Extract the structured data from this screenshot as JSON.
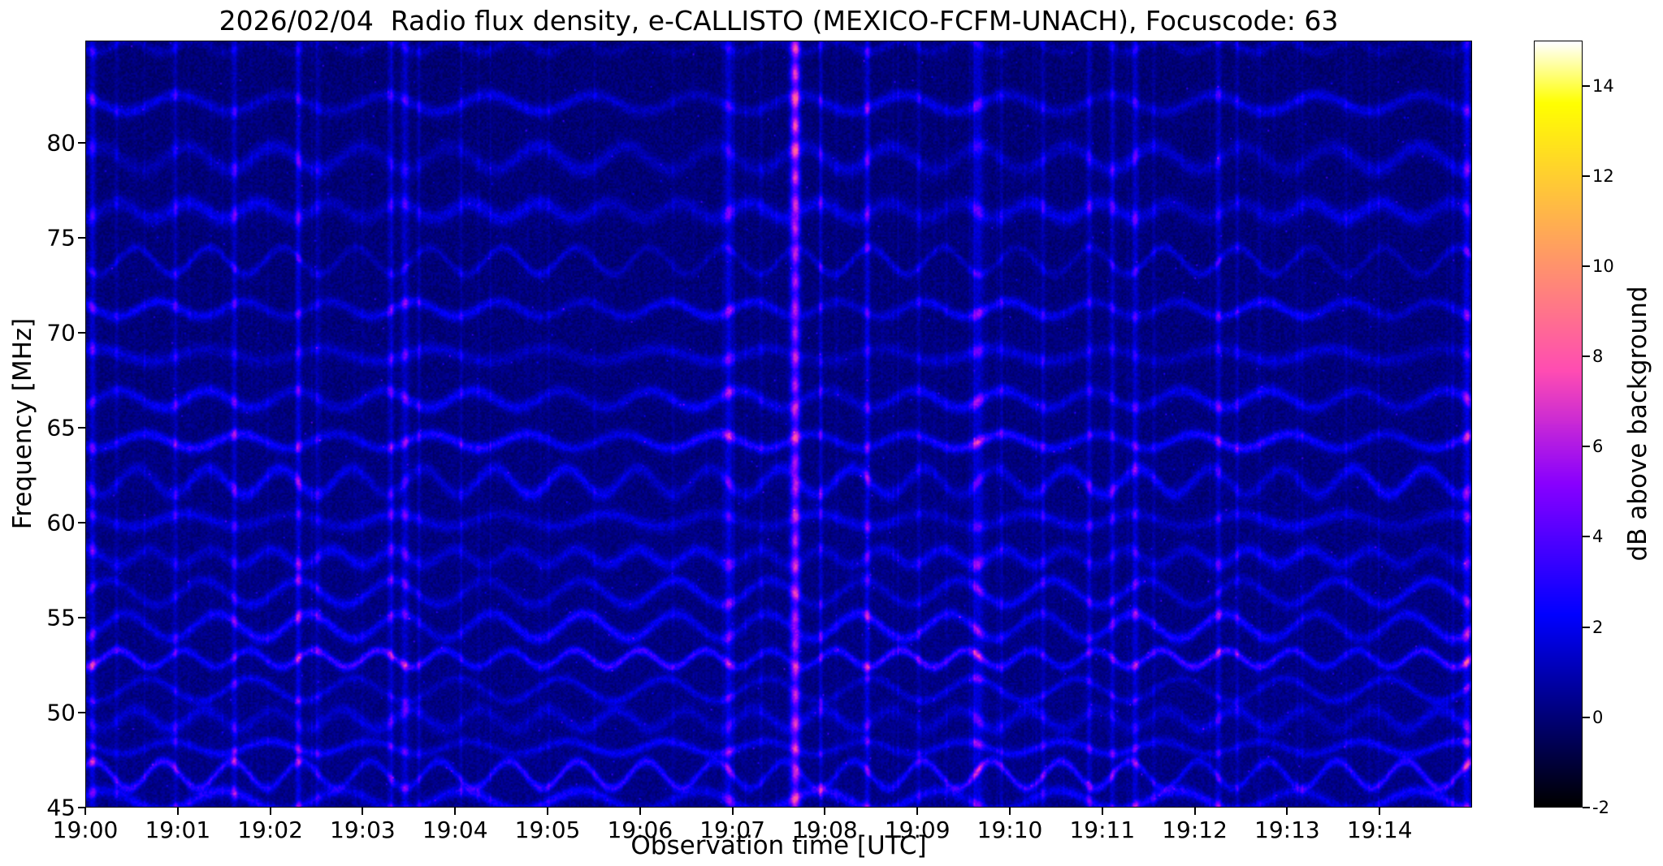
{
  "title": "2026/02/04  Radio flux density, e-CALLISTO (MEXICO-FCFM-UNACH), Focuscode: 63",
  "chart_data": {
    "type": "heatmap",
    "title": "2026/02/04  Radio flux density, e-CALLISTO (MEXICO-FCFM-UNACH), Focuscode: 63",
    "xlabel": "Observation time [UTC]",
    "ylabel": "Frequency [MHz]",
    "colorbar_label": "dB above background",
    "x_tick_labels": [
      "19:00",
      "19:01",
      "19:02",
      "19:03",
      "19:04",
      "19:05",
      "19:06",
      "19:07",
      "19:08",
      "19:09",
      "19:10",
      "19:11",
      "19:12",
      "19:13",
      "19:14"
    ],
    "x_tick_minutes": [
      0,
      1,
      2,
      3,
      4,
      5,
      6,
      7,
      8,
      9,
      10,
      11,
      12,
      13,
      14
    ],
    "x_range_minutes": [
      0,
      15
    ],
    "y_tick_values": [
      45,
      50,
      55,
      60,
      65,
      70,
      75,
      80
    ],
    "y_range_mhz": [
      45,
      85.4
    ],
    "colorbar_tick_values": [
      -2,
      0,
      2,
      4,
      6,
      8,
      10,
      12,
      14
    ],
    "value_range_db": [
      -2,
      15
    ],
    "colormap": "gnuplot2",
    "background": {
      "base_db": -0.05,
      "low_freq_boost_db": 0.32,
      "noise_db": 1.0
    },
    "interference_bands": {
      "start_mhz": 45.4,
      "spacing_base_mhz": 1.35,
      "spacing_growth_per_mhz": 0.045,
      "wiggle_amp_mhz": 0.55,
      "wiggle_period_min": [
        0.6,
        1.3
      ],
      "width_mhz": [
        0.22,
        0.42
      ],
      "amp_db": [
        1.1,
        2.6
      ],
      "boosted_bands_mhz": [
        53.5,
        65.0
      ]
    },
    "vertical_streaks": [
      {
        "t_min": 0.07,
        "width_min": 0.035,
        "amp_db": 2.8
      },
      {
        "t_min": 0.33,
        "width_min": 0.02,
        "amp_db": 1.2
      },
      {
        "t_min": 0.97,
        "width_min": 0.025,
        "amp_db": 1.5
      },
      {
        "t_min": 1.6,
        "width_min": 0.03,
        "amp_db": 2.2
      },
      {
        "t_min": 2.3,
        "width_min": 0.03,
        "amp_db": 3.0
      },
      {
        "t_min": 2.5,
        "width_min": 0.02,
        "amp_db": 1.8
      },
      {
        "t_min": 3.3,
        "width_min": 0.03,
        "amp_db": 2.2
      },
      {
        "t_min": 3.45,
        "width_min": 0.04,
        "amp_db": 2.6
      },
      {
        "t_min": 3.6,
        "width_min": 0.02,
        "amp_db": 1.6
      },
      {
        "t_min": 4.05,
        "width_min": 0.015,
        "amp_db": 0.8
      },
      {
        "t_min": 5.5,
        "width_min": 0.015,
        "amp_db": 0.7
      },
      {
        "t_min": 6.95,
        "width_min": 0.045,
        "amp_db": 3.2
      },
      {
        "t_min": 7.3,
        "width_min": 0.02,
        "amp_db": 1.0
      },
      {
        "t_min": 7.95,
        "width_min": 0.02,
        "amp_db": 2.0
      },
      {
        "t_min": 8.45,
        "width_min": 0.03,
        "amp_db": 3.2
      },
      {
        "t_min": 9.0,
        "width_min": 0.02,
        "amp_db": 1.2
      },
      {
        "t_min": 9.65,
        "width_min": 0.06,
        "amp_db": 2.8
      },
      {
        "t_min": 9.9,
        "width_min": 0.02,
        "amp_db": 1.5
      },
      {
        "t_min": 10.35,
        "width_min": 0.025,
        "amp_db": 1.8
      },
      {
        "t_min": 10.85,
        "width_min": 0.03,
        "amp_db": 2.2
      },
      {
        "t_min": 11.1,
        "width_min": 0.03,
        "amp_db": 2.4
      },
      {
        "t_min": 11.35,
        "width_min": 0.035,
        "amp_db": 2.6
      },
      {
        "t_min": 11.55,
        "width_min": 0.02,
        "amp_db": 1.2
      },
      {
        "t_min": 12.25,
        "width_min": 0.03,
        "amp_db": 2.4
      },
      {
        "t_min": 12.45,
        "width_min": 0.02,
        "amp_db": 1.6
      },
      {
        "t_min": 13.1,
        "width_min": 0.015,
        "amp_db": 0.8
      },
      {
        "t_min": 14.93,
        "width_min": 0.04,
        "amp_db": 3.0
      }
    ],
    "bright_burst": {
      "t_min": 7.67,
      "width_min": 0.05,
      "amp_db": 6.5
    }
  }
}
